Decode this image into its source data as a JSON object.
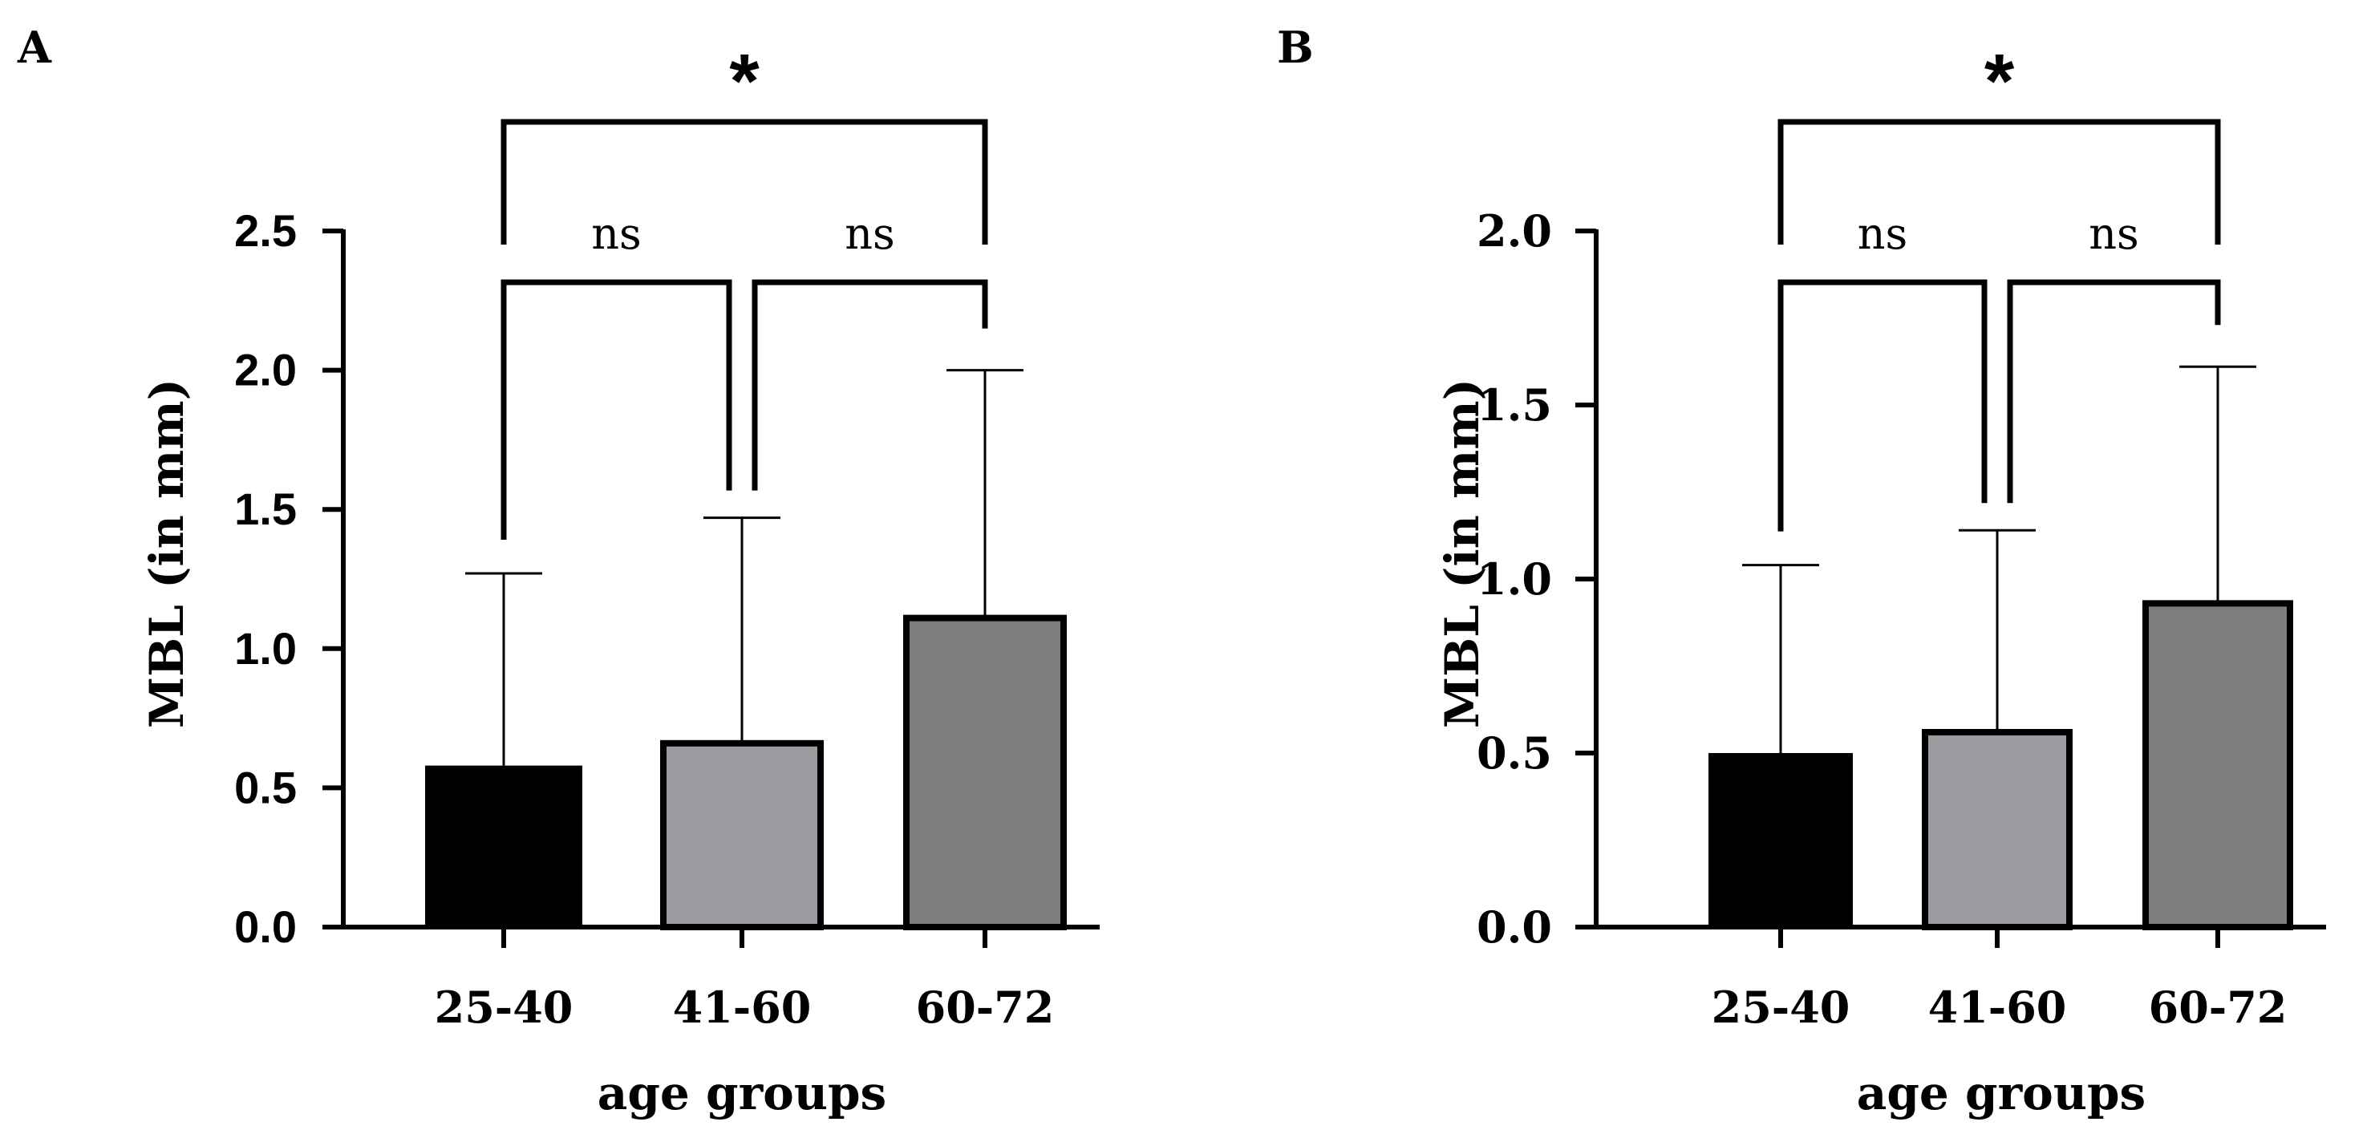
{
  "chart_data": [
    {
      "type": "bar",
      "panel": "A",
      "categories": [
        "25-40",
        "41-60",
        "60-72"
      ],
      "values": [
        0.58,
        0.66,
        1.11
      ],
      "error_upper": [
        1.27,
        1.47,
        2.0
      ],
      "colors": [
        "#000000",
        "#9b9b9f",
        "#7d7d7d"
      ],
      "xlabel": "age groups",
      "ylabel": "MBL (in mm)",
      "ylim": [
        0,
        2.5
      ],
      "yticks": [
        0.0,
        0.5,
        1.0,
        1.5,
        2.0,
        2.5
      ],
      "ytick_labels": [
        "0.0",
        "0.5",
        "1.0",
        "1.5",
        "2.0",
        "2.5"
      ],
      "comparisons": [
        {
          "from": 0,
          "to": 1,
          "label": "ns"
        },
        {
          "from": 1,
          "to": 2,
          "label": "ns"
        },
        {
          "from": 0,
          "to": 2,
          "label": "*"
        }
      ]
    },
    {
      "type": "bar",
      "panel": "B",
      "categories": [
        "25-40",
        "41-60",
        "60-72"
      ],
      "values": [
        0.5,
        0.56,
        0.93
      ],
      "error_upper": [
        1.04,
        1.14,
        1.61
      ],
      "colors": [
        "#000000",
        "#9b9b9f",
        "#7d7d7d"
      ],
      "xlabel": "age groups",
      "ylabel": "MBL (in mm)",
      "ylim": [
        0,
        2.0
      ],
      "yticks": [
        0.0,
        0.5,
        1.0,
        1.5,
        2.0
      ],
      "ytick_labels": [
        "0.0",
        "0.5",
        "1.0",
        "1.5",
        "2.0"
      ],
      "comparisons": [
        {
          "from": 0,
          "to": 1,
          "label": "ns"
        },
        {
          "from": 1,
          "to": 2,
          "label": "ns"
        },
        {
          "from": 0,
          "to": 2,
          "label": "*"
        }
      ]
    }
  ]
}
